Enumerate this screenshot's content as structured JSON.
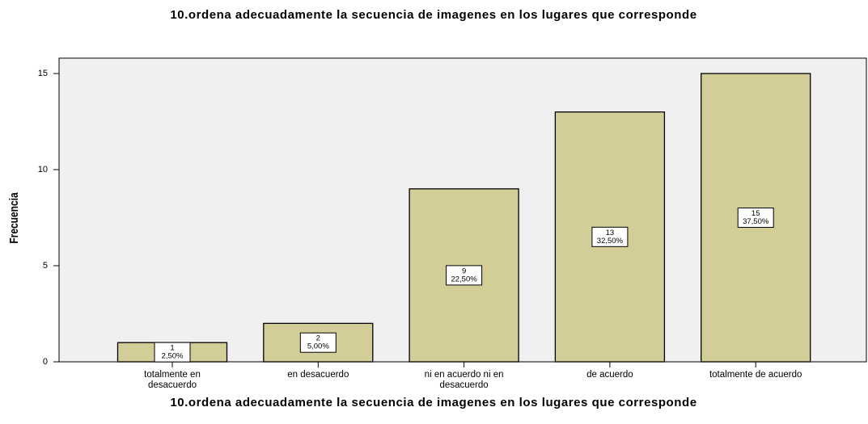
{
  "chart_data": {
    "type": "bar",
    "title": "10.ordena adecuadamente la secuencia de imagenes en los lugares que corresponde",
    "x_label": "10.ordena adecuadamente la secuencia de imagenes en los lugares que corresponde",
    "y_label": "Frecuencia",
    "categories": [
      "totalmente en desacuerdo",
      "en desacuerdo",
      "ni en acuerdo ni en desacuerdo",
      "de acuerdo",
      "totalmente de acuerdo"
    ],
    "values": [
      1,
      2,
      9,
      13,
      15
    ],
    "percents": [
      2.5,
      5,
      22.5,
      32.5,
      37.5
    ],
    "percent_labels": [
      "2,50%",
      "5,00%",
      "22,50%",
      "32,50%",
      "37,50%"
    ],
    "color": "#d3cd98",
    "ylim": [
      0,
      15.8
    ],
    "yticks": [
      0,
      5,
      10,
      15
    ],
    "grid": false
  }
}
